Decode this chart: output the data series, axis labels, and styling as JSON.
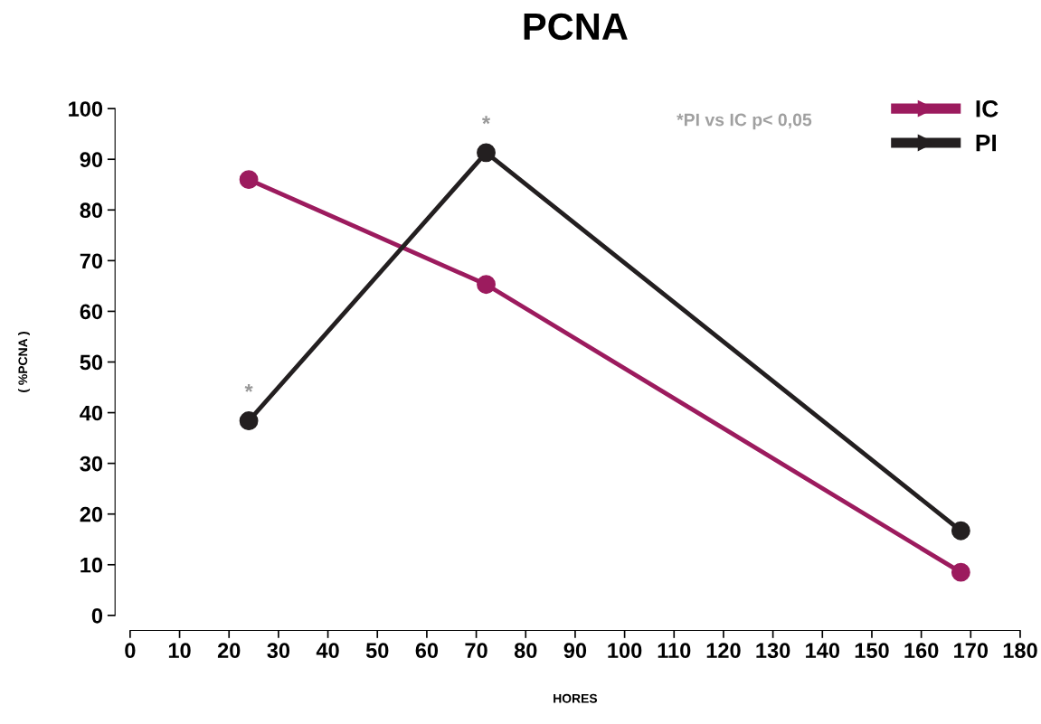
{
  "chart_data": {
    "type": "line",
    "title": "PCNA",
    "xlabel": "HORES",
    "ylabel": "( %PCNA )",
    "x": [
      24,
      72,
      168
    ],
    "series": [
      {
        "name": "IC",
        "color": "#9c1b5e",
        "values": [
          86,
          65.3,
          8.5
        ]
      },
      {
        "name": "PI",
        "color": "#231f20",
        "values": [
          38.4,
          91.3,
          16.7
        ]
      }
    ],
    "xlim": [
      0,
      180
    ],
    "xticks": [
      0,
      10,
      20,
      30,
      40,
      50,
      60,
      70,
      80,
      90,
      100,
      110,
      120,
      130,
      140,
      150,
      160,
      170,
      180
    ],
    "ylim": [
      0,
      100
    ],
    "yticks": [
      0,
      10,
      20,
      30,
      40,
      50,
      60,
      70,
      80,
      90,
      100
    ],
    "annotations": [
      {
        "text": "*",
        "x": 24,
        "y": 38.4
      },
      {
        "text": "*",
        "x": 72,
        "y": 91.3
      },
      "*PI vs IC p< 0,05"
    ],
    "marker": "circle",
    "line_style": "solid",
    "grid": false,
    "legend": "top right"
  }
}
